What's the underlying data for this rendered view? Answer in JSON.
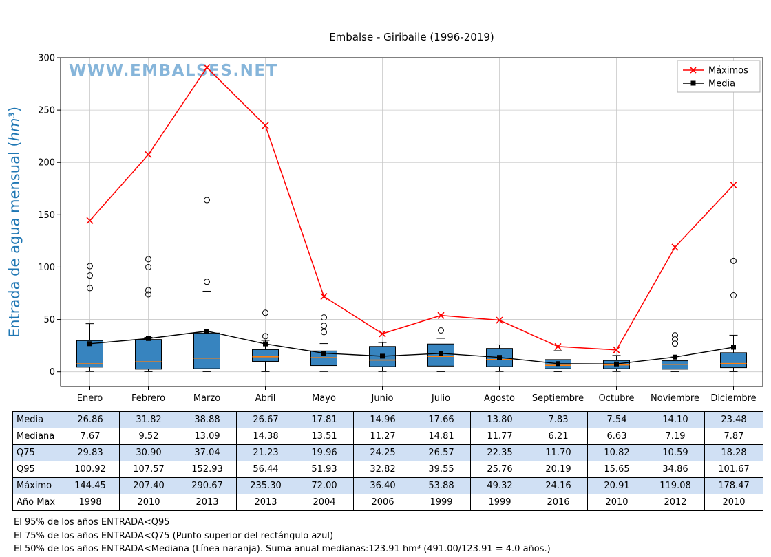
{
  "watermark": "WWW.EMBALSES.NET",
  "chart_data": {
    "type": "boxplot",
    "title": "Embalse - Giribaile (1996-2019)",
    "ylabel": "Entrada de agua mensual (hm³)",
    "xlabel": "",
    "ylim": [
      -14,
      300
    ],
    "yticks": [
      0,
      50,
      100,
      150,
      200,
      250,
      300
    ],
    "grid": true,
    "legend_position": "top-right",
    "categories": [
      "Enero",
      "Febrero",
      "Marzo",
      "Abril",
      "Mayo",
      "Junio",
      "Julio",
      "Agosto",
      "Septiembre",
      "Octubre",
      "Noviembre",
      "Diciembre"
    ],
    "series": [
      {
        "name": "Máximos",
        "marker": "x",
        "color": "#ff0000",
        "values": [
          144.45,
          207.4,
          290.67,
          235.3,
          72.0,
          36.4,
          53.88,
          49.32,
          24.16,
          20.91,
          119.08,
          178.47
        ]
      },
      {
        "name": "Media",
        "marker": "square",
        "color": "#000000",
        "values": [
          26.86,
          31.82,
          38.88,
          26.67,
          17.81,
          14.96,
          17.66,
          13.8,
          7.83,
          7.54,
          14.1,
          23.48
        ]
      }
    ],
    "boxes": [
      {
        "q1": 4.5,
        "med": 7.67,
        "q3": 29.83,
        "whisker_low": 0.3,
        "whisker_high": 46,
        "outliers": [
          80,
          92,
          100.92
        ]
      },
      {
        "q1": 2.5,
        "med": 9.52,
        "q3": 30.9,
        "whisker_low": 0.2,
        "whisker_high": 33,
        "outliers": [
          74,
          78,
          100,
          107.57
        ]
      },
      {
        "q1": 3.0,
        "med": 13.09,
        "q3": 37.04,
        "whisker_low": 0.2,
        "whisker_high": 77,
        "outliers": [
          86,
          164
        ]
      },
      {
        "q1": 10.0,
        "med": 14.38,
        "q3": 21.23,
        "whisker_low": 0.2,
        "whisker_high": 30,
        "outliers": [
          34,
          56.44
        ]
      },
      {
        "q1": 6.0,
        "med": 13.51,
        "q3": 19.96,
        "whisker_low": 0.3,
        "whisker_high": 27,
        "outliers": [
          38,
          44,
          51.93
        ]
      },
      {
        "q1": 5.0,
        "med": 11.27,
        "q3": 24.25,
        "whisker_low": 0.3,
        "whisker_high": 28,
        "outliers": []
      },
      {
        "q1": 5.5,
        "med": 14.81,
        "q3": 26.57,
        "whisker_low": 0.2,
        "whisker_high": 32,
        "outliers": [
          39.55
        ]
      },
      {
        "q1": 5.0,
        "med": 11.77,
        "q3": 22.35,
        "whisker_low": 0.3,
        "whisker_high": 25.76,
        "outliers": []
      },
      {
        "q1": 3.0,
        "med": 6.21,
        "q3": 11.7,
        "whisker_low": 0.2,
        "whisker_high": 20.19,
        "outliers": []
      },
      {
        "q1": 3.0,
        "med": 6.63,
        "q3": 10.82,
        "whisker_low": 0.3,
        "whisker_high": 15.65,
        "outliers": []
      },
      {
        "q1": 2.5,
        "med": 7.19,
        "q3": 10.59,
        "whisker_low": 0.2,
        "whisker_high": 15,
        "outliers": [
          27,
          31,
          34.86
        ]
      },
      {
        "q1": 4.0,
        "med": 7.87,
        "q3": 18.28,
        "whisker_low": 0.2,
        "whisker_high": 35,
        "outliers": [
          73,
          106
        ]
      }
    ],
    "colors": {
      "box_fill": "#3784bf",
      "median_line": "#ff7f0e",
      "max_line": "#ff0000",
      "media_line": "#000000",
      "grid": "#c8c8c8",
      "frame": "#000000",
      "watermark": "#7aaed6",
      "ylabel": "#1f77b4",
      "legend_border": "#b0b0b0"
    }
  },
  "table": {
    "row_labels": [
      "Media",
      "Mediana",
      "Q75",
      "Q95",
      "Máximo",
      "Año Max"
    ],
    "rows": [
      [
        "26.86",
        "31.82",
        "38.88",
        "26.67",
        "17.81",
        "14.96",
        "17.66",
        "13.80",
        "7.83",
        "7.54",
        "14.10",
        "23.48"
      ],
      [
        "7.67",
        "9.52",
        "13.09",
        "14.38",
        "13.51",
        "11.27",
        "14.81",
        "11.77",
        "6.21",
        "6.63",
        "7.19",
        "7.87"
      ],
      [
        "29.83",
        "30.90",
        "37.04",
        "21.23",
        "19.96",
        "24.25",
        "26.57",
        "22.35",
        "11.70",
        "10.82",
        "10.59",
        "18.28"
      ],
      [
        "100.92",
        "107.57",
        "152.93",
        "56.44",
        "51.93",
        "32.82",
        "39.55",
        "25.76",
        "20.19",
        "15.65",
        "34.86",
        "101.67"
      ],
      [
        "144.45",
        "207.40",
        "290.67",
        "235.30",
        "72.00",
        "36.40",
        "53.88",
        "49.32",
        "24.16",
        "20.91",
        "119.08",
        "178.47"
      ],
      [
        "1998",
        "2010",
        "2013",
        "2013",
        "2004",
        "2006",
        "1999",
        "1999",
        "2016",
        "2010",
        "2012",
        "2010"
      ]
    ],
    "shaded_row_color": "#d0e0f4"
  },
  "footnotes": [
    "El 95% de los años ENTRADA<Q95",
    "El 75% de los años ENTRADA<Q75 (Punto superior del rectángulo azul)",
    "El 50% de los años ENTRADA<Mediana (Línea naranja). Suma anual medianas:123.91 hm³ (491.00/123.91 = 4.0 años.)"
  ]
}
